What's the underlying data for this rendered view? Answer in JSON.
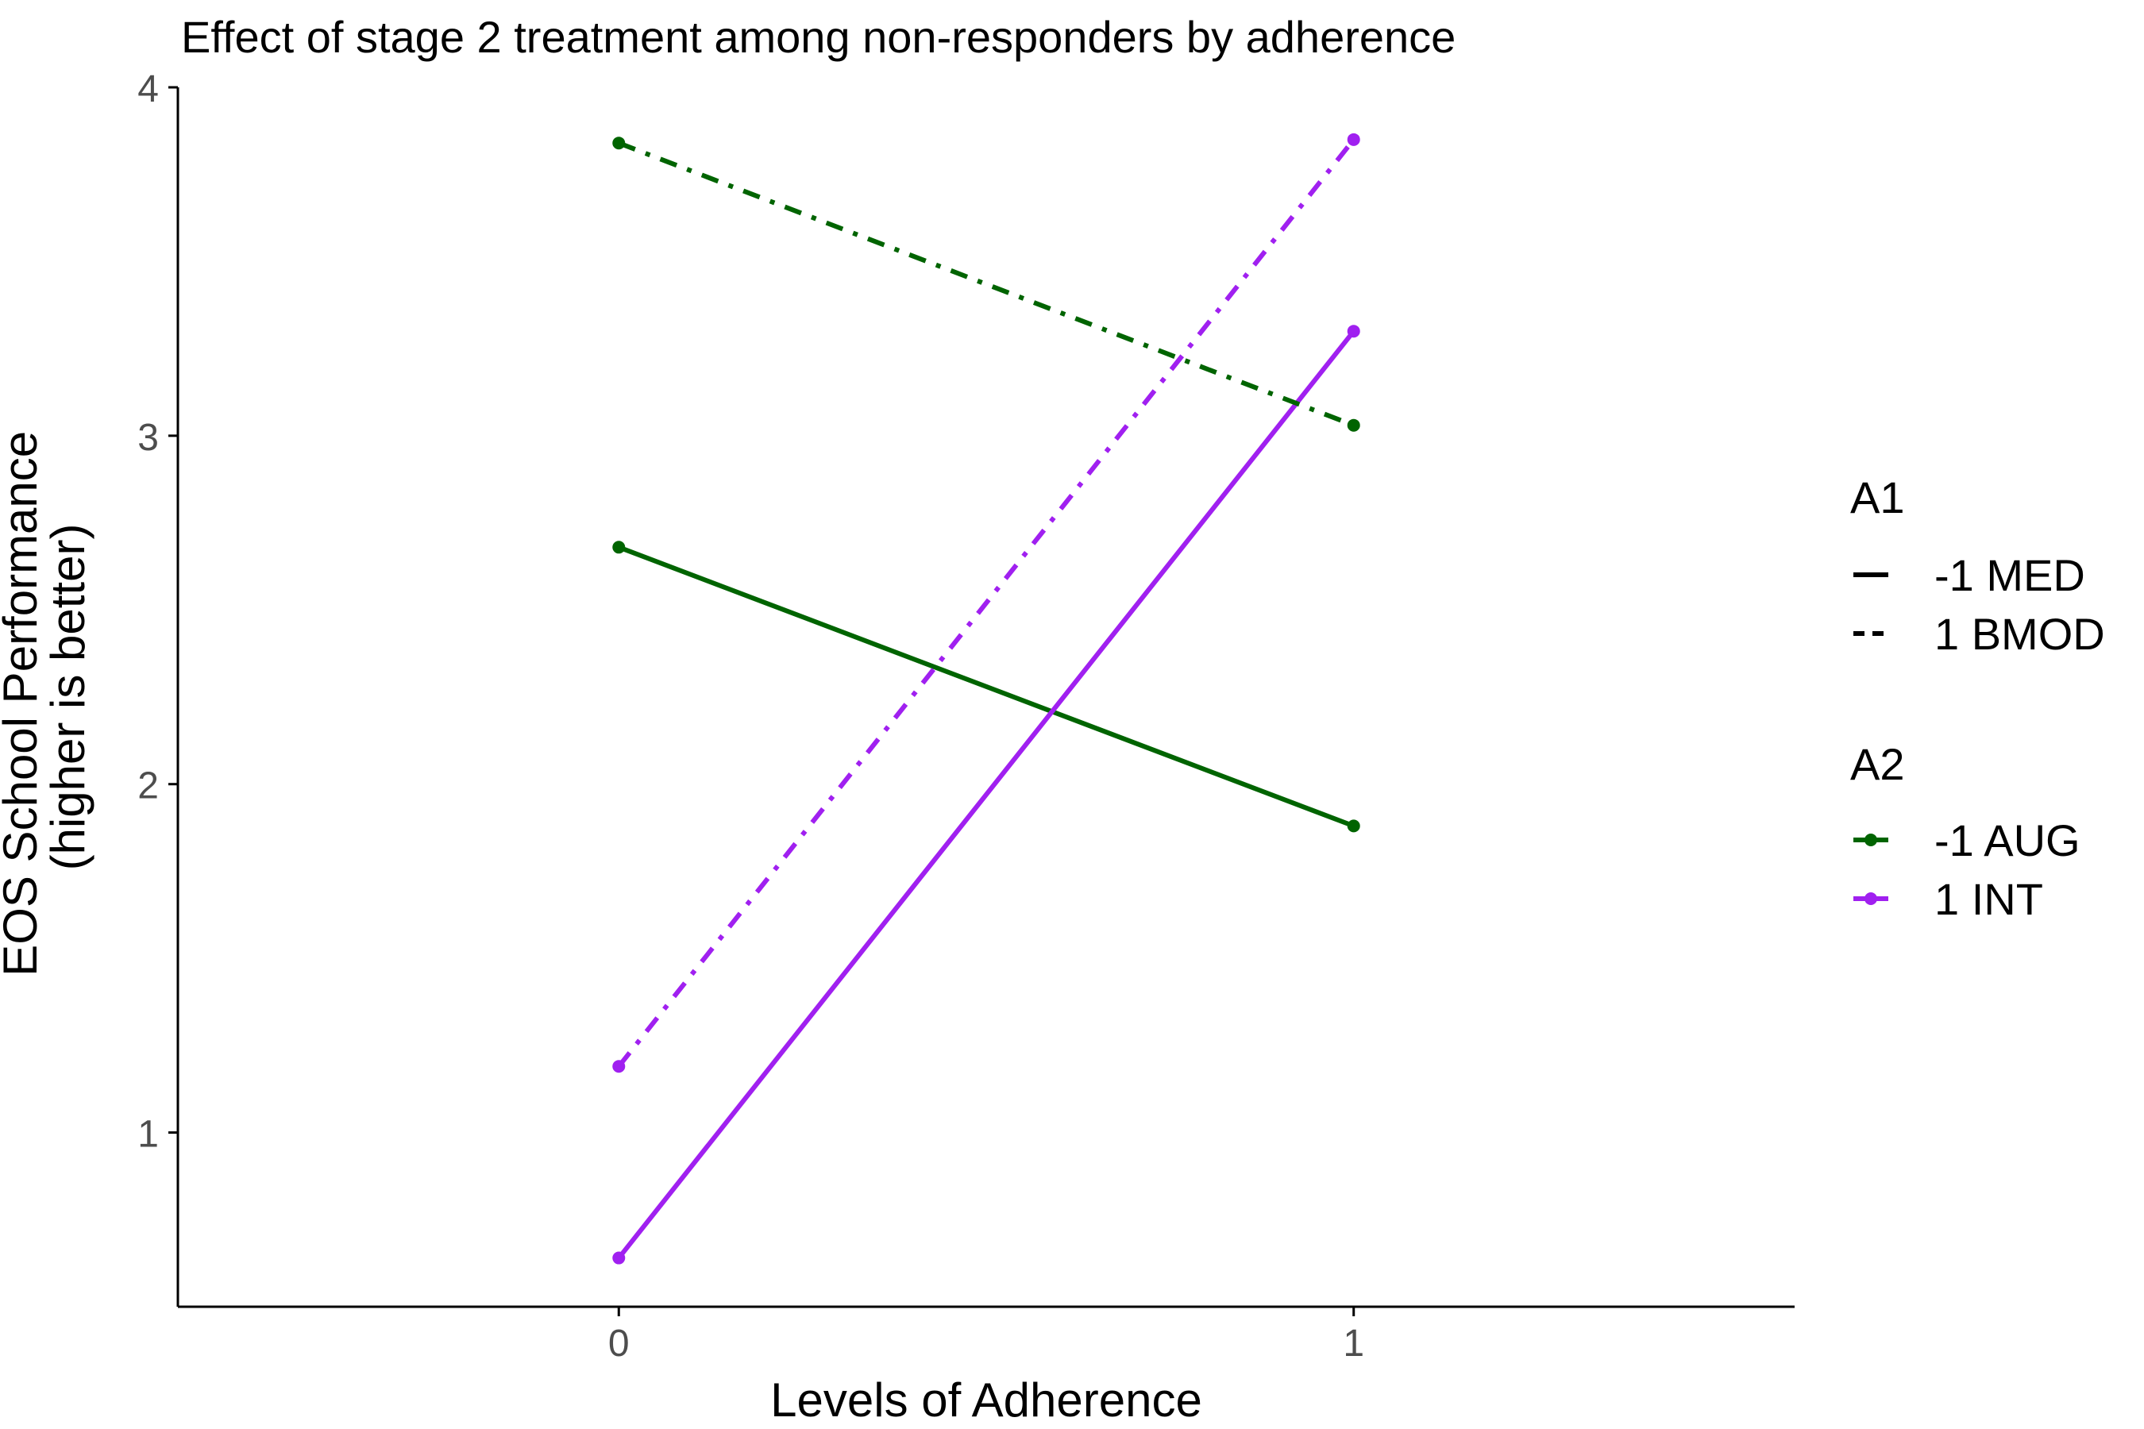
{
  "chart_data": {
    "type": "line",
    "title": "Effect of stage 2 treatment among non-responders by adherence",
    "xlabel": "Levels of Adherence",
    "ylabel": [
      "EOS School Performance",
      "(higher is better)"
    ],
    "x": [
      0,
      1
    ],
    "x_ticks": [
      "0",
      "1"
    ],
    "y_ticks": [
      "1",
      "2",
      "3",
      "4"
    ],
    "xlim": [
      -0.6,
      1.6
    ],
    "ylim": [
      0.5,
      4.0
    ],
    "grid": false,
    "legend_position": "right",
    "series": [
      {
        "name": "A1=-1 MED, A2=-1 AUG",
        "a1": "-1 MED",
        "a2": "-1 AUG",
        "linetype": "solid",
        "color": "#006400",
        "values": [
          2.68,
          1.88
        ]
      },
      {
        "name": "A1=-1 MED, A2=1 INT",
        "a1": "-1 MED",
        "a2": "1 INT",
        "linetype": "solid",
        "color": "#A020F0",
        "values": [
          0.64,
          3.3
        ]
      },
      {
        "name": "A1=1 BMOD, A2=-1 AUG",
        "a1": "1 BMOD",
        "a2": "-1 AUG",
        "linetype": "dashed",
        "color": "#006400",
        "values": [
          3.84,
          3.03
        ]
      },
      {
        "name": "A1=1 BMOD, A2=1 INT",
        "a1": "1 BMOD",
        "a2": "1 INT",
        "linetype": "dashed",
        "color": "#A020F0",
        "values": [
          1.19,
          3.85
        ]
      }
    ],
    "legend": {
      "a1": {
        "title": "A1",
        "items": [
          {
            "label": "-1 MED",
            "linetype": "solid"
          },
          {
            "label": "1 BMOD",
            "linetype": "dashed"
          }
        ]
      },
      "a2": {
        "title": "A2",
        "items": [
          {
            "label": "-1 AUG",
            "color": "#006400"
          },
          {
            "label": "1 INT",
            "color": "#A020F0"
          }
        ]
      }
    }
  }
}
